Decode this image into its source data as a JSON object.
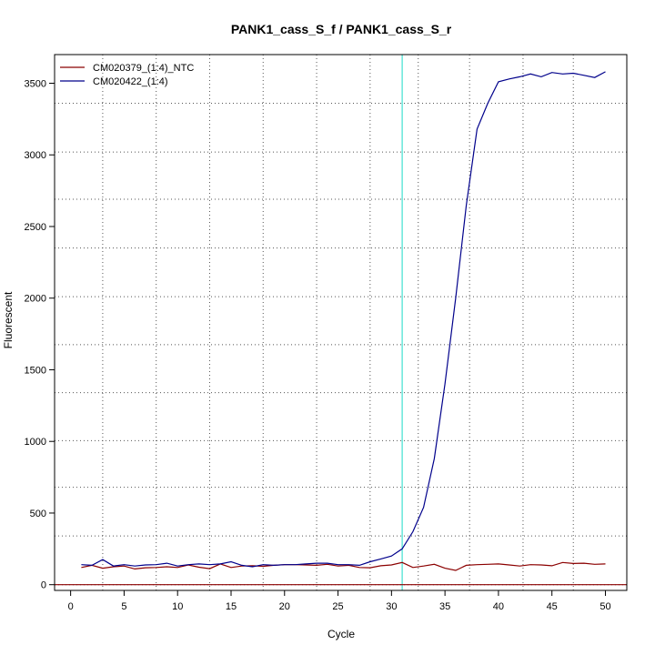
{
  "chart_data": {
    "type": "line",
    "title": "PANK1_cass_S_f / PANK1_cass_S_r",
    "xlabel": "Cycle",
    "ylabel": "Fluorescent",
    "xlim": [
      -1.5,
      52
    ],
    "ylim": [
      -40,
      3700
    ],
    "xticks": [
      0,
      5,
      10,
      15,
      20,
      25,
      30,
      35,
      40,
      45,
      50
    ],
    "yticks": [
      0,
      500,
      1000,
      1500,
      2000,
      2500,
      3000,
      3500
    ],
    "grid": true,
    "grid_x": [
      3,
      8,
      13,
      18,
      23,
      28,
      32.5,
      37.3,
      42.3,
      47
    ],
    "grid_y": [
      0,
      340,
      680,
      1005,
      1340,
      1675,
      2010,
      2350,
      2690,
      3020,
      3360
    ],
    "threshold_cycle": 31,
    "threshold_color": "#40e0d0",
    "baseline": 0,
    "baseline_color": "#8b0000",
    "legend_position": "top-left",
    "series": [
      {
        "name": "CM020379_(1:4)_NTC",
        "color": "#8b0000",
        "x": [
          1,
          2,
          3,
          4,
          5,
          6,
          7,
          8,
          9,
          10,
          11,
          12,
          13,
          14,
          15,
          16,
          17,
          18,
          19,
          20,
          21,
          22,
          23,
          24,
          25,
          26,
          27,
          28,
          29,
          30,
          31,
          32,
          33,
          34,
          35,
          36,
          37,
          38,
          39,
          40,
          41,
          42,
          43,
          44,
          45,
          46,
          47,
          48,
          49,
          50
        ],
        "y": [
          120,
          135,
          115,
          125,
          130,
          110,
          118,
          120,
          125,
          120,
          138,
          122,
          112,
          145,
          120,
          130,
          132,
          128,
          135,
          140,
          140,
          138,
          135,
          142,
          130,
          135,
          120,
          118,
          132,
          138,
          155,
          120,
          130,
          142,
          115,
          100,
          135,
          140,
          142,
          145,
          138,
          130,
          140,
          138,
          132,
          155,
          148,
          150,
          142,
          145
        ]
      },
      {
        "name": "CM020422_(1:4)",
        "color": "#00008b",
        "x": [
          1,
          2,
          3,
          4,
          5,
          6,
          7,
          8,
          9,
          10,
          11,
          12,
          13,
          14,
          15,
          16,
          17,
          18,
          19,
          20,
          21,
          22,
          23,
          24,
          25,
          26,
          27,
          28,
          29,
          30,
          31,
          32,
          33,
          34,
          35,
          36,
          37,
          38,
          39,
          40,
          41,
          42,
          43,
          44,
          45,
          46,
          47,
          48,
          49,
          50
        ],
        "y": [
          140,
          135,
          175,
          130,
          140,
          130,
          138,
          140,
          150,
          130,
          140,
          145,
          140,
          145,
          160,
          135,
          125,
          140,
          135,
          140,
          140,
          145,
          150,
          150,
          140,
          140,
          135,
          160,
          180,
          200,
          250,
          370,
          540,
          880,
          1400,
          2000,
          2650,
          3180,
          3360,
          3510,
          3530,
          3545,
          3565,
          3545,
          3575,
          3565,
          3570,
          3555,
          3540,
          3580
        ]
      }
    ]
  }
}
